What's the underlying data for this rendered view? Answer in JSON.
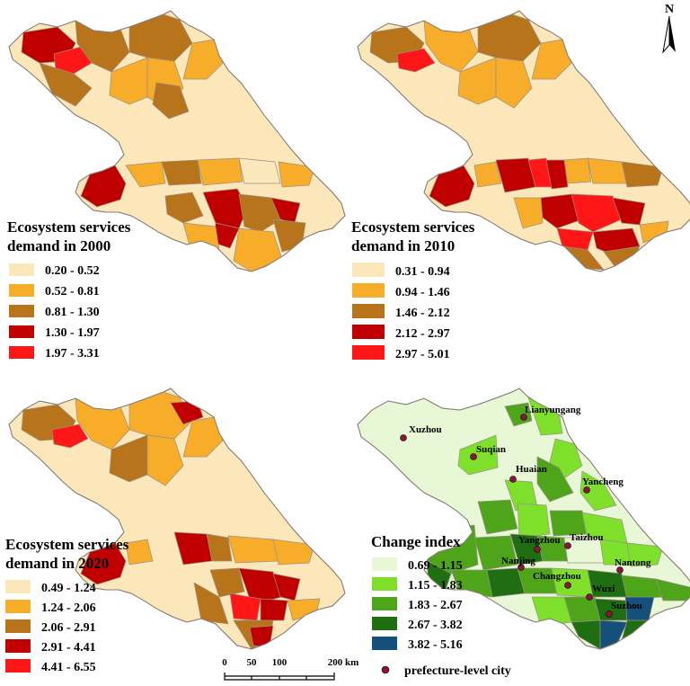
{
  "north_label": "N",
  "maps": [
    {
      "id": "2000",
      "title_line1": "Ecosystem services",
      "title_line2": "demand in 2000",
      "legend": [
        {
          "label": "0.20 - 0.52",
          "color": "#fbe7b9"
        },
        {
          "label": "0.52 - 0.81",
          "color": "#f7ad2a"
        },
        {
          "label": "0.81 - 1.30",
          "color": "#b8741a"
        },
        {
          "label": "1.30 - 1.97",
          "color": "#c00000"
        },
        {
          "label": "1.97 - 3.31",
          "color": "#ff1616"
        }
      ]
    },
    {
      "id": "2010",
      "title_line1": "Ecosystem services",
      "title_line2": "demand in 2010",
      "legend": [
        {
          "label": "0.31 - 0.94",
          "color": "#fbe7b9"
        },
        {
          "label": "0.94 - 1.46",
          "color": "#f7ad2a"
        },
        {
          "label": "1.46 - 2.12",
          "color": "#b8741a"
        },
        {
          "label": "2.12 - 2.97",
          "color": "#c00000"
        },
        {
          "label": "2.97 - 5.01",
          "color": "#ff1616"
        }
      ]
    },
    {
      "id": "2020",
      "title_line1": "Ecosystem services",
      "title_line2": "demand in 2020",
      "legend": [
        {
          "label": "0.49 - 1.24",
          "color": "#fbe7b9"
        },
        {
          "label": "1.24 - 2.06",
          "color": "#f7ad2a"
        },
        {
          "label": "2.06 - 2.91",
          "color": "#b8741a"
        },
        {
          "label": "2.91 - 4.41",
          "color": "#c00000"
        },
        {
          "label": "4.41 - 6.55",
          "color": "#ff1616"
        }
      ]
    },
    {
      "id": "change",
      "title_line1": "Change index",
      "legend": [
        {
          "label": "0.69 - 1.15",
          "color": "#e8f8d6"
        },
        {
          "label": "1.15 - 1.83",
          "color": "#7fe02c"
        },
        {
          "label": "1.83 - 2.67",
          "color": "#4fa51a"
        },
        {
          "label": "2.67 - 3.82",
          "color": "#1f6e12"
        },
        {
          "label": "3.82 - 5.16",
          "color": "#14507a"
        }
      ],
      "city_legend": "prefecture-level city"
    }
  ],
  "cities": [
    "Lianyungang",
    "Xuzhou",
    "Suqian",
    "Huaian",
    "Yancheng",
    "Yangzhou",
    "Taizhou",
    "Nanjing",
    "Nantong",
    "Changzhou",
    "Wuxi",
    "Suzhou"
  ],
  "city_dot_color": "#8b1538",
  "scale_bar": {
    "labels": [
      "0",
      "50",
      "100",
      "200 km"
    ]
  }
}
